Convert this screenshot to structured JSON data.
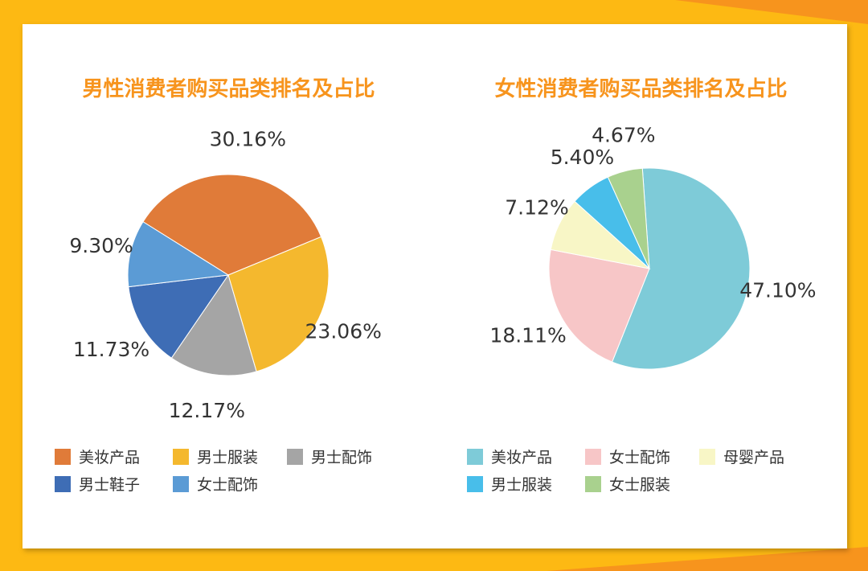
{
  "chart_data": [
    {
      "type": "pie",
      "title": "男性消费者购买品类排名及占比",
      "slices": [
        {
          "label": "美妆产品",
          "value": 30.16,
          "display": "30.16%",
          "color": "#E07B39"
        },
        {
          "label": "男士服装",
          "value": 23.06,
          "display": "23.06%",
          "color": "#F4B82E"
        },
        {
          "label": "男士配饰",
          "value": 12.17,
          "display": "12.17%",
          "color": "#A5A5A5"
        },
        {
          "label": "男士鞋子",
          "value": 11.73,
          "display": "11.73%",
          "color": "#3E6DB5"
        },
        {
          "label": "女士配饰",
          "value": 9.3,
          "display": "9.30%",
          "color": "#5B9BD5"
        }
      ],
      "legend": "bottom"
    },
    {
      "type": "pie",
      "title": "女性消费者购买品类排名及占比",
      "slices": [
        {
          "label": "美妆产品",
          "value": 47.1,
          "display": "47.10%",
          "color": "#7ECBD8"
        },
        {
          "label": "女士配饰",
          "value": 18.11,
          "display": "18.11%",
          "color": "#F7C6C7"
        },
        {
          "label": "母婴产品",
          "value": 7.12,
          "display": "7.12%",
          "color": "#F8F6C6"
        },
        {
          "label": "男士服装",
          "value": 5.4,
          "display": "5.40%",
          "color": "#48BEEA"
        },
        {
          "label": "女士服装",
          "value": 4.67,
          "display": "4.67%",
          "color": "#A9D18E"
        }
      ],
      "legend": "bottom"
    }
  ]
}
